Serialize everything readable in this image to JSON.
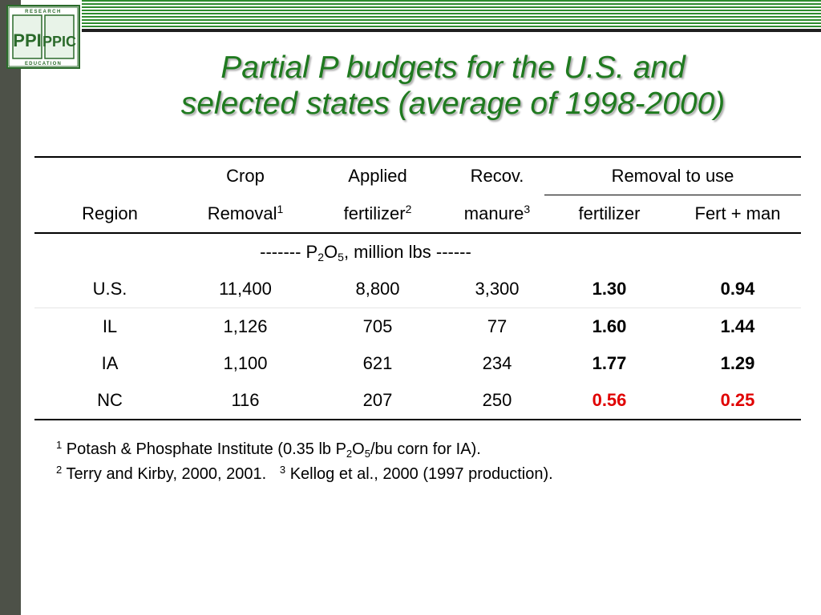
{
  "logo": {
    "top_text": "RESEARCH",
    "bottom_text": "EDUCATION",
    "letters_left": "PPI",
    "letters_right": "PPIC"
  },
  "title": {
    "line1": "Partial P budgets for the U.S. and",
    "line2": "selected states (average of 1998-2000)"
  },
  "table": {
    "header_row1": {
      "crop": "Crop",
      "applied": "Applied",
      "recov": "Recov.",
      "removal_to_use": "Removal to use"
    },
    "header_row2": {
      "region": "Region",
      "removal": "Removal",
      "removal_sup": "1",
      "fertilizer": "fertilizer",
      "fertilizer_sup": "2",
      "manure": "manure",
      "manure_sup": "3",
      "rtu_fertilizer": "fertilizer",
      "rtu_fert_man": "Fert + man"
    },
    "units": {
      "prefix": "------- P",
      "sub1": "2",
      "mid": "O",
      "sub2": "5",
      "suffix": ", million lbs ------"
    },
    "rows": [
      {
        "region": "U.S.",
        "crop_removal": "11,400",
        "applied_fertilizer": "8,800",
        "recov_manure": "3,300",
        "rtu_fertilizer": "1.30",
        "rtu_fert_man": "0.94"
      },
      {
        "region": "IL",
        "crop_removal": "1,126",
        "applied_fertilizer": "705",
        "recov_manure": "77",
        "rtu_fertilizer": "1.60",
        "rtu_fert_man": "1.44"
      },
      {
        "region": "IA",
        "crop_removal": "1,100",
        "applied_fertilizer": "621",
        "recov_manure": "234",
        "rtu_fertilizer": "1.77",
        "rtu_fert_man": "1.29"
      },
      {
        "region": "NC",
        "crop_removal": "116",
        "applied_fertilizer": "207",
        "recov_manure": "250",
        "rtu_fertilizer": "0.56",
        "rtu_fert_man": "0.25"
      }
    ],
    "highlight_color": "#e00000"
  },
  "footnotes": {
    "f1_num": "1",
    "f1_a": "Potash & Phosphate Institute (0.35 lb P",
    "f1_sub1": "2",
    "f1_b": "O",
    "f1_sub2": "5",
    "f1_c": "/bu corn for IA).",
    "f2_num": "2",
    "f2_text": "Terry and Kirby, 2000, 2001.",
    "f3_num": "3",
    "f3_text": "Kellog et al., 2000 (1997 production)."
  }
}
